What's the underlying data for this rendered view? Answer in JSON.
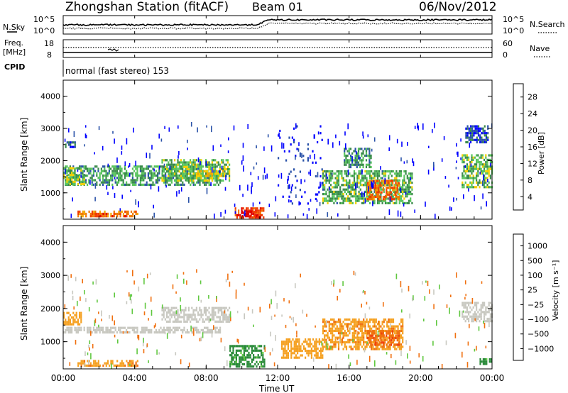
{
  "header": {
    "station": "Zhongshan Station (fitACF)",
    "beam": "Beam 01",
    "date": "06/Nov/2012"
  },
  "top_panel": {
    "left_label": "N.Sky",
    "right_label": "N.Search",
    "left_ticks": [
      "10^5",
      "10^0"
    ],
    "right_ticks": [
      "10^5",
      "10^0"
    ]
  },
  "freq_panel": {
    "left_label": "Freq.",
    "left_unit": "[MHz]",
    "right_label": "Nave",
    "left_ticks": [
      "18",
      "8"
    ],
    "right_ticks": [
      "60",
      "0"
    ]
  },
  "cpid": {
    "label": "CPID",
    "mode": "normal (fast stereo) 153"
  },
  "colors": {
    "power_scale": [
      "#0000ff",
      "#2a52a8",
      "#3a8a4a",
      "#57c45c",
      "#f5d000",
      "#f5a800",
      "#f07800",
      "#f03c00",
      "#e00000"
    ],
    "velocity_scale": [
      "#1040c0",
      "#3a70b8",
      "#2a8a3a",
      "#60c840",
      "#c8c8c0",
      "#c8c8c0",
      "#f5a020",
      "#f07010",
      "#f04010",
      "#e00000"
    ],
    "ground_scatter": "#c8c8c0"
  },
  "chart_data": [
    {
      "type": "heatmap",
      "panel": "power",
      "ylabel": "Slant Range [km]",
      "yticks": [
        "4000",
        "3000",
        "2000",
        "1000"
      ],
      "ylim": [
        180,
        4500
      ],
      "xlim": [
        0,
        24
      ],
      "colorbar_label": "Power [dB]",
      "colorbar_ticks": [
        "28",
        "24",
        "20",
        "16",
        "12",
        "8",
        "4"
      ],
      "colorbar_range": [
        0,
        32
      ],
      "regions": [
        {
          "t0": 0.0,
          "t1": 8.8,
          "r0": 1250,
          "r1": 1850,
          "level": 10
        },
        {
          "t0": 0.0,
          "t1": 1.2,
          "r0": 1300,
          "r1": 1800,
          "level": 13
        },
        {
          "t0": 0.1,
          "t1": 0.7,
          "r0": 2400,
          "r1": 2600,
          "level": 6
        },
        {
          "t0": 5.5,
          "t1": 9.3,
          "r0": 1400,
          "r1": 2050,
          "level": 12
        },
        {
          "t0": 7.5,
          "t1": 9.0,
          "r0": 1500,
          "r1": 1700,
          "level": 16
        },
        {
          "t0": 0.8,
          "t1": 4.2,
          "r0": 250,
          "r1": 450,
          "level": 22
        },
        {
          "t0": 1.5,
          "t1": 3.5,
          "r0": 280,
          "r1": 380,
          "level": 26
        },
        {
          "t0": 9.6,
          "t1": 11.2,
          "r0": 250,
          "r1": 550,
          "level": 27
        },
        {
          "t0": 9.9,
          "t1": 10.8,
          "r0": 300,
          "r1": 450,
          "level": 30
        },
        {
          "t0": 14.5,
          "t1": 19.5,
          "r0": 700,
          "r1": 1700,
          "level": 11
        },
        {
          "t0": 17.0,
          "t1": 18.8,
          "r0": 800,
          "r1": 1400,
          "level": 24
        },
        {
          "t0": 15.7,
          "t1": 17.2,
          "r0": 1800,
          "r1": 2400,
          "level": 9
        },
        {
          "t0": 22.3,
          "t1": 24.0,
          "r0": 1200,
          "r1": 2200,
          "level": 12
        },
        {
          "t0": 22.5,
          "t1": 23.8,
          "r0": 2600,
          "r1": 3100,
          "level": 5
        },
        {
          "t0": 12.0,
          "t1": 14.5,
          "r0": 700,
          "r1": 3100,
          "level": 3
        }
      ]
    },
    {
      "type": "heatmap",
      "panel": "velocity",
      "ylabel": "Slant Range [km]",
      "yticks": [
        "4000",
        "3000",
        "2000",
        "1000"
      ],
      "ylim": [
        180,
        4500
      ],
      "xlim": [
        0,
        24
      ],
      "xlabel": "Time UT",
      "xticks": [
        "00:00",
        "04:00",
        "08:00",
        "12:00",
        "16:00",
        "20:00",
        "00:00"
      ],
      "colorbar_label": "Velocity [m s⁻¹]",
      "colorbar_ticks": [
        "1000",
        "500",
        "100",
        "25",
        "−25",
        "−100",
        "−500",
        "−1000"
      ],
      "regions": [
        {
          "t0": 0.0,
          "t1": 8.8,
          "r0": 1250,
          "r1": 1450,
          "class": "ground"
        },
        {
          "t0": 5.5,
          "t1": 9.3,
          "r0": 1600,
          "r1": 2050,
          "class": "ground"
        },
        {
          "t0": 0.0,
          "t1": 1.0,
          "r0": 1500,
          "r1": 1900,
          "level": -300
        },
        {
          "t0": 0.8,
          "t1": 4.2,
          "r0": 250,
          "r1": 450,
          "level": -400
        },
        {
          "t0": 9.3,
          "t1": 11.3,
          "r0": 250,
          "r1": 900,
          "level": 150
        },
        {
          "t0": 12.2,
          "t1": 14.5,
          "r0": 500,
          "r1": 1100,
          "level": -300
        },
        {
          "t0": 14.5,
          "t1": 19.0,
          "r0": 800,
          "r1": 1700,
          "level": -400
        },
        {
          "t0": 17.0,
          "t1": 18.8,
          "r0": 900,
          "r1": 1350,
          "level": -800
        },
        {
          "t0": 22.3,
          "t1": 24.0,
          "r0": 1600,
          "r1": 2200,
          "class": "ground"
        },
        {
          "t0": 23.3,
          "t1": 24.0,
          "r0": 300,
          "r1": 500,
          "level": 150
        }
      ]
    }
  ]
}
